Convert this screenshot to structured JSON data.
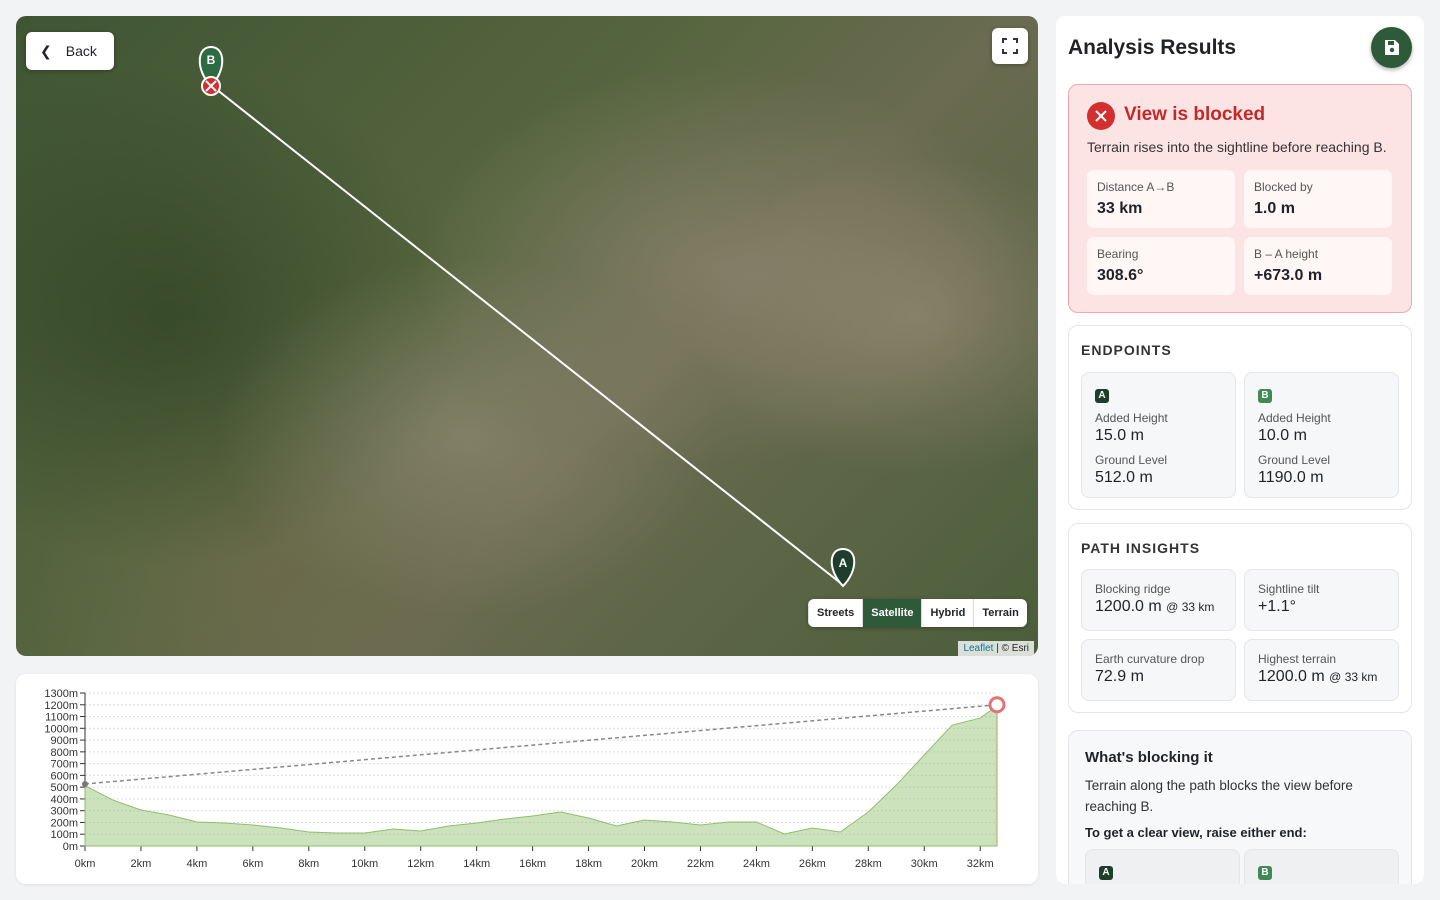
{
  "map": {
    "back": "Back",
    "layers": [
      "Streets",
      "Satellite",
      "Hybrid",
      "Terrain"
    ],
    "active_layer": 1,
    "attribution_link": "Leaflet",
    "attribution_text": "| © Esri",
    "markers": {
      "a": "A",
      "b": "B"
    }
  },
  "panel": {
    "title": "Analysis Results",
    "status": {
      "title": "View is blocked",
      "text": "Terrain rises into the sightline before reaching B.",
      "stats": [
        {
          "label": "Distance A→B",
          "value": "33 km"
        },
        {
          "label": "Blocked by",
          "value": "1.0 m"
        },
        {
          "label": "Bearing",
          "value": "308.6°"
        },
        {
          "label": "B – A height",
          "value": "+673.0 m"
        }
      ]
    },
    "endpoints": {
      "heading": "ENDPOINTS",
      "items": [
        {
          "badge": "A",
          "fields": [
            {
              "label": "Added Height",
              "value": "15.0 m"
            },
            {
              "label": "Ground Level",
              "value": "512.0 m"
            }
          ]
        },
        {
          "badge": "B",
          "fields": [
            {
              "label": "Added Height",
              "value": "10.0 m"
            },
            {
              "label": "Ground Level",
              "value": "1190.0 m"
            }
          ]
        }
      ]
    },
    "insights": {
      "heading": "PATH INSIGHTS",
      "items": [
        {
          "label": "Blocking ridge",
          "value": "1200.0 m",
          "suffix": "@ 33 km"
        },
        {
          "label": "Sightline tilt",
          "value": "+1.1°"
        },
        {
          "label": "Earth curvature drop",
          "value": "72.9 m"
        },
        {
          "label": "Highest terrain",
          "value": "1200.0 m",
          "suffix": "@ 33 km"
        }
      ]
    },
    "blocking": {
      "title": "What's blocking it",
      "text": "Terrain along the path blocks the view before reaching B.",
      "prompt": "To get a clear view, raise either end:",
      "badges": [
        "A",
        "B"
      ]
    }
  },
  "chart_data": {
    "type": "area",
    "x": [
      0,
      1,
      2,
      3,
      4,
      5,
      6,
      7,
      8,
      9,
      10,
      11,
      12,
      13,
      14,
      15,
      16,
      17,
      18,
      19,
      20,
      21,
      22,
      23,
      24,
      25,
      26,
      27,
      28,
      29,
      30,
      31,
      32,
      32.6
    ],
    "series": [
      {
        "name": "Terrain",
        "color": "#8fbf6a",
        "values": [
          512,
          390,
          306,
          263,
          204,
          195,
          178,
          153,
          119,
          110,
          110,
          144,
          127,
          170,
          195,
          229,
          255,
          289,
          238,
          170,
          221,
          204,
          178,
          204,
          204,
          102,
          153,
          119,
          289,
          518,
          773,
          1028,
          1087,
          1190
        ]
      }
    ],
    "sightline": {
      "color": "#888888",
      "x": [
        0,
        32.6
      ],
      "values": [
        527,
        1200
      ]
    },
    "xlim": [
      0,
      32.6
    ],
    "ylim": [
      0,
      1300
    ],
    "xticks": [
      {
        "value": 0,
        "label": "0km"
      },
      {
        "value": 2,
        "label": "2km"
      },
      {
        "value": 4,
        "label": "4km"
      },
      {
        "value": 6,
        "label": "6km"
      },
      {
        "value": 8,
        "label": "8km"
      },
      {
        "value": 10,
        "label": "10km"
      },
      {
        "value": 12,
        "label": "12km"
      },
      {
        "value": 14,
        "label": "14km"
      },
      {
        "value": 16,
        "label": "16km"
      },
      {
        "value": 18,
        "label": "18km"
      },
      {
        "value": 20,
        "label": "20km"
      },
      {
        "value": 22,
        "label": "22km"
      },
      {
        "value": 24,
        "label": "24km"
      },
      {
        "value": 26,
        "label": "26km"
      },
      {
        "value": 28,
        "label": "28km"
      },
      {
        "value": 30,
        "label": "30km"
      },
      {
        "value": 32,
        "label": "32km"
      }
    ],
    "yticks": [
      {
        "value": 0,
        "label": "0m"
      },
      {
        "value": 100,
        "label": "100m"
      },
      {
        "value": 200,
        "label": "200m"
      },
      {
        "value": 300,
        "label": "300m"
      },
      {
        "value": 400,
        "label": "400m"
      },
      {
        "value": 500,
        "label": "500m"
      },
      {
        "value": 600,
        "label": "600m"
      },
      {
        "value": 700,
        "label": "700m"
      },
      {
        "value": 800,
        "label": "800m"
      },
      {
        "value": 900,
        "label": "900m"
      },
      {
        "value": 1000,
        "label": "1000m"
      },
      {
        "value": 1100,
        "label": "1100m"
      },
      {
        "value": 1200,
        "label": "1200m"
      },
      {
        "value": 1300,
        "label": "1300m"
      }
    ],
    "grid": true
  }
}
